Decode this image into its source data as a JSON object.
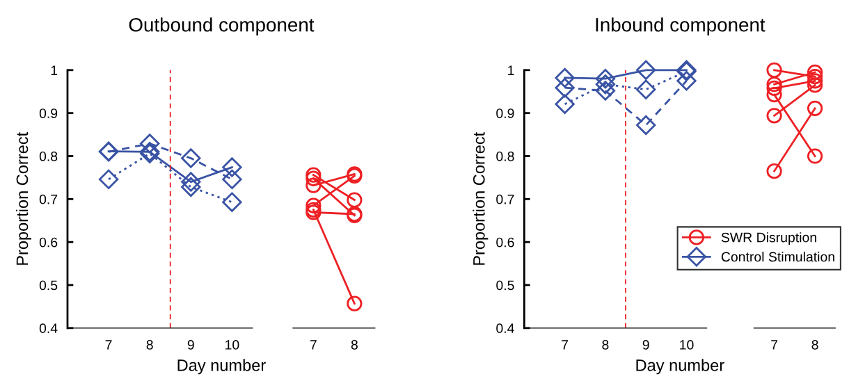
{
  "chart_data": [
    {
      "type": "line",
      "title": "Outbound component",
      "xlabel": "Day number",
      "ylabel": "Proportion Correct",
      "xlim": [
        6,
        10.5
      ],
      "xticks": [
        7,
        8,
        9,
        10
      ],
      "ylim": [
        0.4,
        1
      ],
      "yticks": [
        0.4,
        0.5,
        0.6,
        0.7,
        0.8,
        0.9,
        1
      ],
      "grid": false,
      "ref_lines": [
        {
          "axis": "x",
          "value": 8.5,
          "color": "#ed2024",
          "line_style": "dashed"
        }
      ],
      "series": [
        {
          "color": "#3953a4",
          "marker": "diamond",
          "line_style": "solid",
          "x": [
            7,
            8,
            9,
            10
          ],
          "values": [
            0.811,
            0.81,
            0.74,
            0.774
          ]
        },
        {
          "color": "#3953a4",
          "marker": "diamond",
          "line_style": "dashed",
          "x": [
            7,
            8,
            9,
            10
          ],
          "values": [
            0.81,
            0.829,
            0.795,
            0.746
          ]
        },
        {
          "color": "#3953a4",
          "marker": "diamond",
          "line_style": "dotted",
          "x": [
            7,
            8,
            9,
            10
          ],
          "values": [
            0.746,
            0.806,
            0.728,
            0.693
          ]
        }
      ]
    },
    {
      "type": "line",
      "xlim": [
        6.5,
        8.5
      ],
      "xticks": [
        7,
        8
      ],
      "ylim": [
        0.4,
        1
      ],
      "tick_labels": "x",
      "grid": false,
      "series": [
        {
          "color": "#ed2024",
          "marker": "circle",
          "line_style": "solid",
          "x": [
            7,
            8
          ],
          "values": [
            0.756,
            0.698
          ]
        },
        {
          "color": "#ed2024",
          "marker": "circle",
          "line_style": "solid",
          "x": [
            7,
            8
          ],
          "values": [
            0.748,
            0.662
          ]
        },
        {
          "color": "#ed2024",
          "marker": "circle",
          "line_style": "solid",
          "x": [
            7,
            8
          ],
          "values": [
            0.732,
            0.758
          ]
        },
        {
          "color": "#ed2024",
          "marker": "circle",
          "line_style": "solid",
          "x": [
            7,
            8
          ],
          "values": [
            0.685,
            0.754
          ]
        },
        {
          "color": "#ed2024",
          "marker": "circle",
          "line_style": "solid",
          "x": [
            7,
            8
          ],
          "values": [
            0.669,
            0.665
          ]
        },
        {
          "color": "#ed2024",
          "marker": "circle",
          "line_style": "solid",
          "x": [
            7,
            8
          ],
          "values": [
            0.675,
            0.457
          ]
        }
      ]
    },
    {
      "type": "line",
      "title": "Inbound component",
      "xlabel": "Day number",
      "ylabel": "Proportion Correct",
      "legend": "bottom right",
      "xlim": [
        6,
        10.5
      ],
      "xticks": [
        7,
        8,
        9,
        10
      ],
      "ylim": [
        0.4,
        1
      ],
      "yticks": [
        0.4,
        0.5,
        0.6,
        0.7,
        0.8,
        0.9,
        1
      ],
      "grid": false,
      "ref_lines": [
        {
          "axis": "x",
          "value": 8.5,
          "color": "#ed2024",
          "line_style": "dashed"
        }
      ],
      "series": [
        {
          "name": "Control Stimulation",
          "color": "#3953a4",
          "marker": "diamond",
          "line_style": "solid",
          "x": [
            7,
            8,
            9,
            10
          ],
          "values": [
            0.982,
            0.98,
            1.0,
            1.0
          ]
        },
        {
          "color": "#3953a4",
          "marker": "diamond",
          "line_style": "dashed",
          "x": [
            7,
            8,
            9,
            10
          ],
          "values": [
            0.959,
            0.952,
            0.872,
            0.975
          ]
        },
        {
          "color": "#3953a4",
          "marker": "diamond",
          "line_style": "dotted",
          "x": [
            7,
            8,
            9,
            10
          ],
          "values": [
            0.921,
            0.967,
            0.955,
            0.997
          ]
        }
      ]
    },
    {
      "type": "line",
      "xlim": [
        6.5,
        8.5
      ],
      "xticks": [
        7,
        8
      ],
      "ylim": [
        0.4,
        1
      ],
      "tick_labels": "x",
      "grid": false,
      "series": [
        {
          "name": "SWR Disruption",
          "color": "#ed2024",
          "marker": "circle",
          "line_style": "solid",
          "x": [
            7,
            8
          ],
          "values": [
            1.0,
            0.985
          ]
        },
        {
          "color": "#ed2024",
          "marker": "circle",
          "line_style": "solid",
          "x": [
            7,
            8
          ],
          "values": [
            0.967,
            0.995
          ]
        },
        {
          "color": "#ed2024",
          "marker": "circle",
          "line_style": "solid",
          "x": [
            7,
            8
          ],
          "values": [
            0.958,
            0.975
          ]
        },
        {
          "color": "#ed2024",
          "marker": "circle",
          "line_style": "solid",
          "x": [
            7,
            8
          ],
          "values": [
            0.943,
            0.8
          ]
        },
        {
          "color": "#ed2024",
          "marker": "circle",
          "line_style": "solid",
          "x": [
            7,
            8
          ],
          "values": [
            0.894,
            0.965
          ]
        },
        {
          "color": "#ed2024",
          "marker": "circle",
          "line_style": "solid",
          "x": [
            7,
            8
          ],
          "values": [
            0.765,
            0.911
          ]
        }
      ]
    }
  ]
}
